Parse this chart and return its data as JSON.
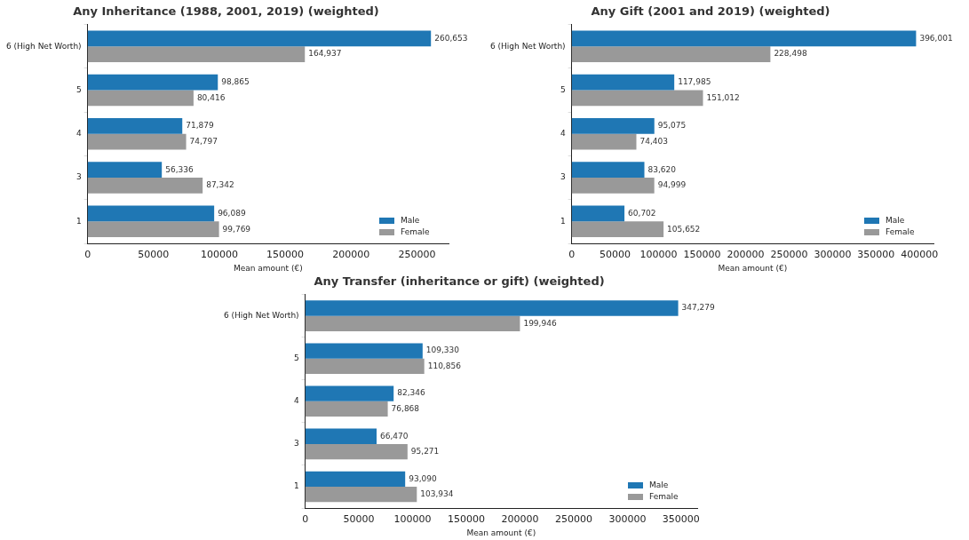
{
  "chart_data": [
    {
      "type": "bar",
      "orientation": "horizontal",
      "title": "Any Inheritance (1988, 2001, 2019) (weighted)",
      "xlabel": "Mean amount (€)",
      "categories": [
        "6 (High Net Worth)",
        "5",
        "4",
        "3",
        "1"
      ],
      "series": [
        {
          "name": "Male",
          "color": "#1f77b4",
          "values": [
            260653,
            98865,
            71879,
            56336,
            96089
          ],
          "value_labels": [
            "260,653",
            "98,865",
            "71,879",
            "56,336",
            "96,089"
          ]
        },
        {
          "name": "Female",
          "color": "#999999",
          "values": [
            164937,
            80416,
            74797,
            87342,
            99769
          ],
          "value_labels": [
            "164,937",
            "80,416",
            "74,797",
            "87,342",
            "99,769"
          ]
        }
      ],
      "xlim": [
        0,
        274000
      ],
      "xticks": [
        0,
        50000,
        100000,
        150000,
        200000,
        250000
      ],
      "grid": false,
      "legend": "bottom right"
    },
    {
      "type": "bar",
      "orientation": "horizontal",
      "title": "Any Gift (2001 and 2019) (weighted)",
      "xlabel": "Mean amount (€)",
      "categories": [
        "6 (High Net Worth)",
        "5",
        "4",
        "3",
        "1"
      ],
      "series": [
        {
          "name": "Male",
          "color": "#1f77b4",
          "values": [
            396001,
            117985,
            95075,
            83620,
            60702
          ],
          "value_labels": [
            "396,001",
            "117,985",
            "95,075",
            "83,620",
            "60,702"
          ]
        },
        {
          "name": "Female",
          "color": "#999999",
          "values": [
            228498,
            151012,
            74403,
            94999,
            105652
          ],
          "value_labels": [
            "228,498",
            "151,012",
            "74,403",
            "94,999",
            "105,652"
          ]
        }
      ],
      "xlim": [
        0,
        416000
      ],
      "xticks": [
        0,
        50000,
        100000,
        150000,
        200000,
        250000,
        300000,
        350000,
        400000
      ],
      "grid": false,
      "legend": "bottom right"
    },
    {
      "type": "bar",
      "orientation": "horizontal",
      "title": "Any Transfer (inheritance or gift) (weighted)",
      "xlabel": "Mean amount (€)",
      "categories": [
        "6 (High Net Worth)",
        "5",
        "4",
        "3",
        "1"
      ],
      "series": [
        {
          "name": "Male",
          "color": "#1f77b4",
          "values": [
            347279,
            109330,
            82346,
            66470,
            93090
          ],
          "value_labels": [
            "347,279",
            "109,330",
            "82,346",
            "66,470",
            "93,090"
          ]
        },
        {
          "name": "Female",
          "color": "#999999",
          "values": [
            199946,
            110856,
            76868,
            95271,
            103934
          ],
          "value_labels": [
            "199,946",
            "110,856",
            "76,868",
            "95,271",
            "103,934"
          ]
        }
      ],
      "xlim": [
        0,
        365000
      ],
      "xticks": [
        0,
        50000,
        100000,
        150000,
        200000,
        250000,
        300000,
        350000
      ],
      "grid": false,
      "legend": "bottom right"
    }
  ]
}
